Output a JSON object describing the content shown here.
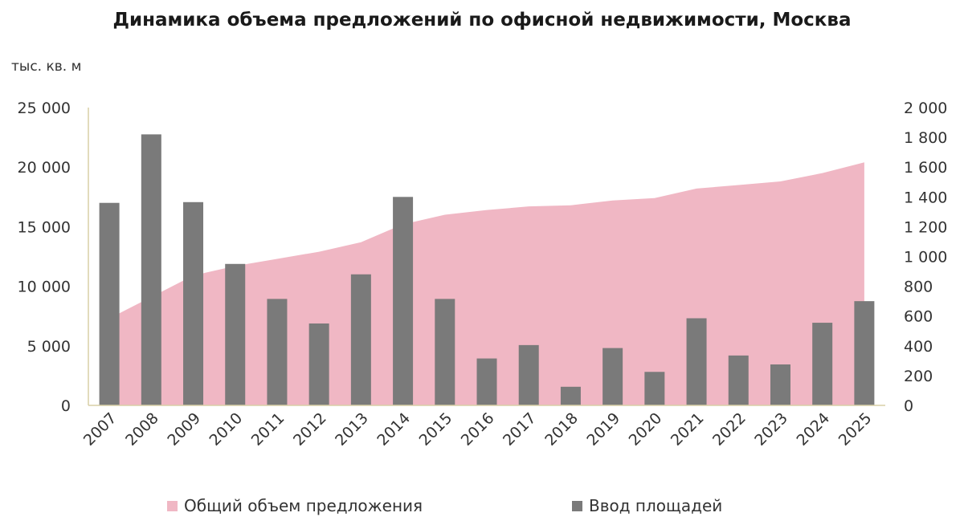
{
  "title": "Динамика объема предложений по офисной недвижимости, Москва",
  "unit_label": "тыс. кв. м",
  "legend": {
    "area_label": "Общий объем предложения",
    "bar_label": "Ввод площадей"
  },
  "colors": {
    "area": "#f0b7c4",
    "bar": "#7a7a7a",
    "axis": "#d8cfa6"
  },
  "chart_data": {
    "type": "bar",
    "categories": [
      "2007",
      "2008",
      "2009",
      "2010",
      "2011",
      "2012",
      "2013",
      "2014",
      "2015",
      "2016",
      "2017",
      "2018",
      "2019",
      "2020",
      "2021",
      "2022",
      "2023",
      "2024",
      "2025"
    ],
    "series": [
      {
        "name": "Общий объем предложения",
        "type": "area",
        "axis": "left",
        "values": [
          7300,
          9100,
          10900,
          11700,
          12300,
          12900,
          13700,
          15200,
          16000,
          16400,
          16700,
          16800,
          17200,
          17400,
          18200,
          18500,
          18800,
          19500,
          20400
        ]
      },
      {
        "name": "Ввод площадей",
        "type": "bar",
        "axis": "right",
        "values": [
          1360,
          1820,
          1365,
          950,
          715,
          550,
          880,
          1400,
          715,
          315,
          405,
          125,
          385,
          225,
          585,
          335,
          275,
          555,
          700
        ]
      }
    ],
    "y_left": {
      "min": 0,
      "max": 25000,
      "ticks": [
        "0",
        "5 000",
        "10 000",
        "15 000",
        "20 000",
        "25 000"
      ]
    },
    "y_right": {
      "min": 0,
      "max": 2000,
      "ticks": [
        "0",
        "200",
        "400",
        "600",
        "800",
        "1 000",
        "1 200",
        "1 400",
        "1 600",
        "1 800",
        "2 000"
      ]
    },
    "ylabel": "тыс. кв. м",
    "grid": false,
    "legend_position": "bottom"
  }
}
